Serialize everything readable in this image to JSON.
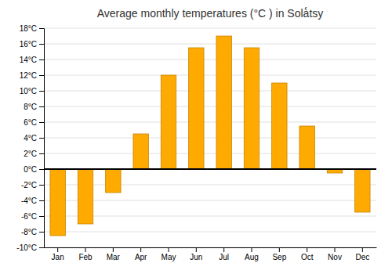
{
  "chart_data": {
    "type": "bar",
    "title": "Average monthly temperatures (°C ) in Solà́tsy",
    "categories": [
      "Jan",
      "Feb",
      "Mar",
      "Apr",
      "May",
      "Jun",
      "Jul",
      "Aug",
      "Sep",
      "Oct",
      "Nov",
      "Dec"
    ],
    "values": [
      -8.5,
      -7.0,
      -3.0,
      4.5,
      12.0,
      15.5,
      17.0,
      15.5,
      11.0,
      5.5,
      -0.5,
      -5.5
    ],
    "color": "#FFAA00",
    "ylim": [
      -10,
      18
    ],
    "yticks": [
      {
        "value": -10,
        "label": "-10°C"
      },
      {
        "value": -8,
        "label": "-8°C"
      },
      {
        "value": -6,
        "label": "-6°C"
      },
      {
        "value": -4,
        "label": "-4°C"
      },
      {
        "value": -2,
        "label": "-2°C"
      },
      {
        "value": 0,
        "label": "0°C"
      },
      {
        "value": 2,
        "label": "2°C"
      },
      {
        "value": 4,
        "label": "4°C"
      },
      {
        "value": 6,
        "label": "6°C"
      },
      {
        "value": 8,
        "label": "8°C"
      },
      {
        "value": 10,
        "label": "10°C"
      },
      {
        "value": 12,
        "label": "12°C"
      },
      {
        "value": 14,
        "label": "14°C"
      },
      {
        "value": 16,
        "label": "16°C"
      },
      {
        "value": 18,
        "label": "18°C"
      }
    ],
    "grid": true
  }
}
